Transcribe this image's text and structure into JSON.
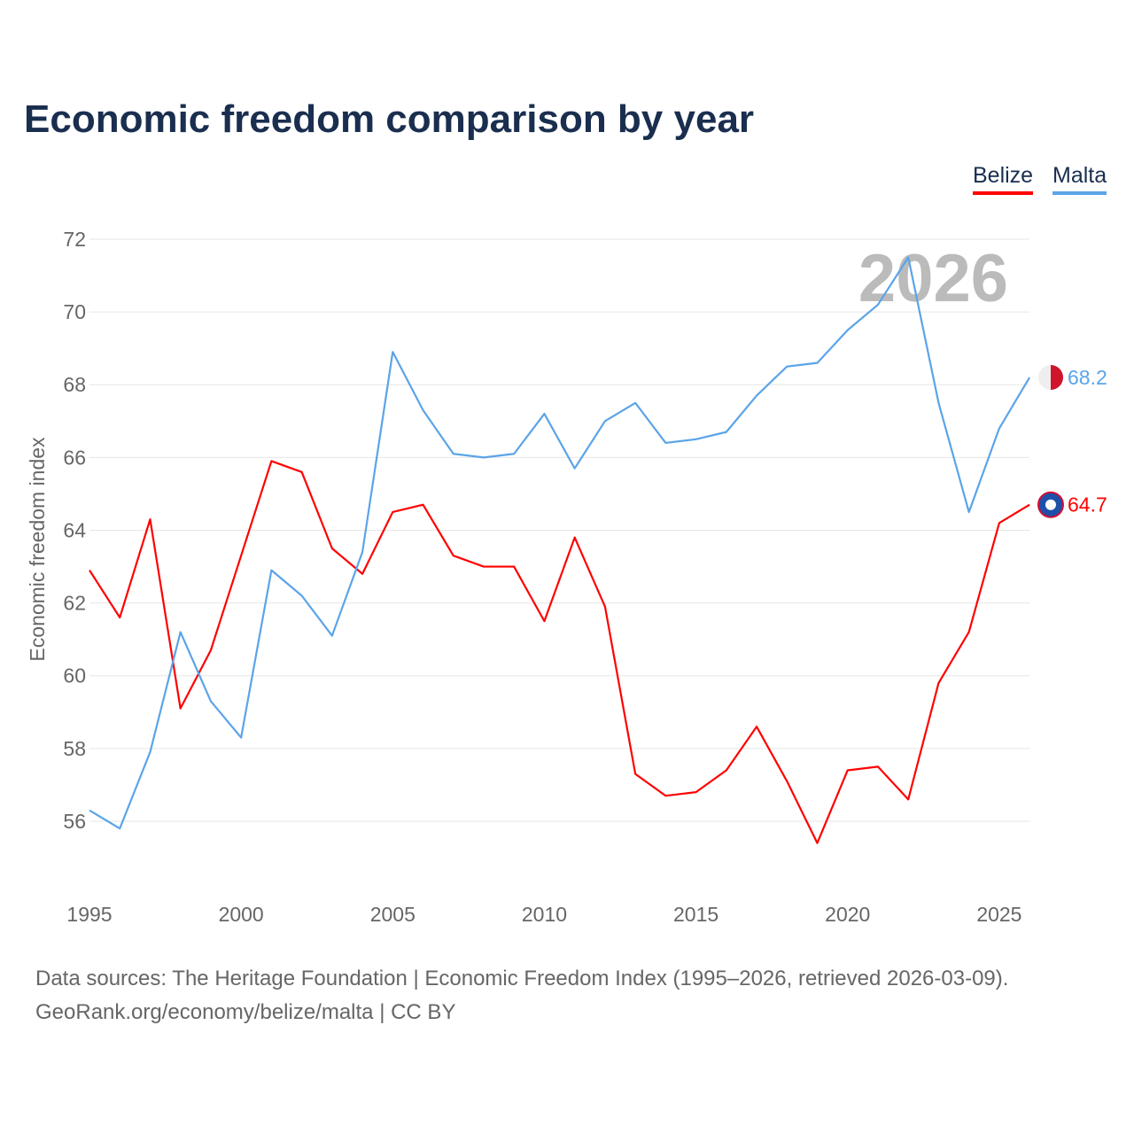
{
  "title": "Economic freedom comparison by year",
  "footer": {
    "line1": "Data sources: The Heritage Foundation | Economic Freedom Index (1995–2026, retrieved 2026-03-09).",
    "line2": "GeoRank.org/economy/belize/malta | CC BY"
  },
  "chart_data": {
    "type": "line",
    "title": "Economic freedom comparison by year",
    "xlabel": "",
    "ylabel": "Economic freedom index",
    "watermark_year": "2026",
    "xlim": [
      1995,
      2026
    ],
    "ylim": [
      54,
      72
    ],
    "xticks": [
      1995,
      2000,
      2005,
      2010,
      2015,
      2020,
      2025
    ],
    "yticks": [
      56,
      58,
      60,
      62,
      64,
      66,
      68,
      70,
      72
    ],
    "grid": true,
    "legend": "top-right",
    "x": [
      1995,
      1996,
      1997,
      1998,
      1999,
      2000,
      2001,
      2002,
      2003,
      2004,
      2005,
      2006,
      2007,
      2008,
      2009,
      2010,
      2011,
      2012,
      2013,
      2014,
      2015,
      2016,
      2017,
      2018,
      2019,
      2020,
      2021,
      2022,
      2023,
      2024,
      2025,
      2026
    ],
    "series": [
      {
        "name": "Belize",
        "color": "#ff0000",
        "end_label": "64.7",
        "values": [
          62.9,
          61.6,
          64.3,
          59.1,
          60.7,
          63.3,
          65.9,
          65.6,
          63.5,
          62.8,
          64.5,
          64.7,
          63.3,
          63.0,
          63.0,
          61.5,
          63.8,
          61.9,
          57.3,
          56.7,
          56.8,
          57.4,
          58.6,
          57.1,
          55.4,
          57.4,
          57.5,
          56.6,
          59.8,
          61.2,
          64.2,
          64.7
        ]
      },
      {
        "name": "Malta",
        "color": "#5ba4e8",
        "end_label": "68.2",
        "values": [
          56.3,
          55.8,
          57.9,
          61.2,
          59.3,
          58.3,
          62.9,
          62.2,
          61.1,
          63.4,
          68.9,
          67.3,
          66.1,
          66.0,
          66.1,
          67.2,
          65.7,
          67.0,
          67.5,
          66.4,
          66.5,
          66.7,
          67.7,
          68.5,
          68.6,
          69.5,
          70.2,
          71.5,
          67.5,
          64.5,
          66.8,
          68.2
        ]
      }
    ]
  }
}
